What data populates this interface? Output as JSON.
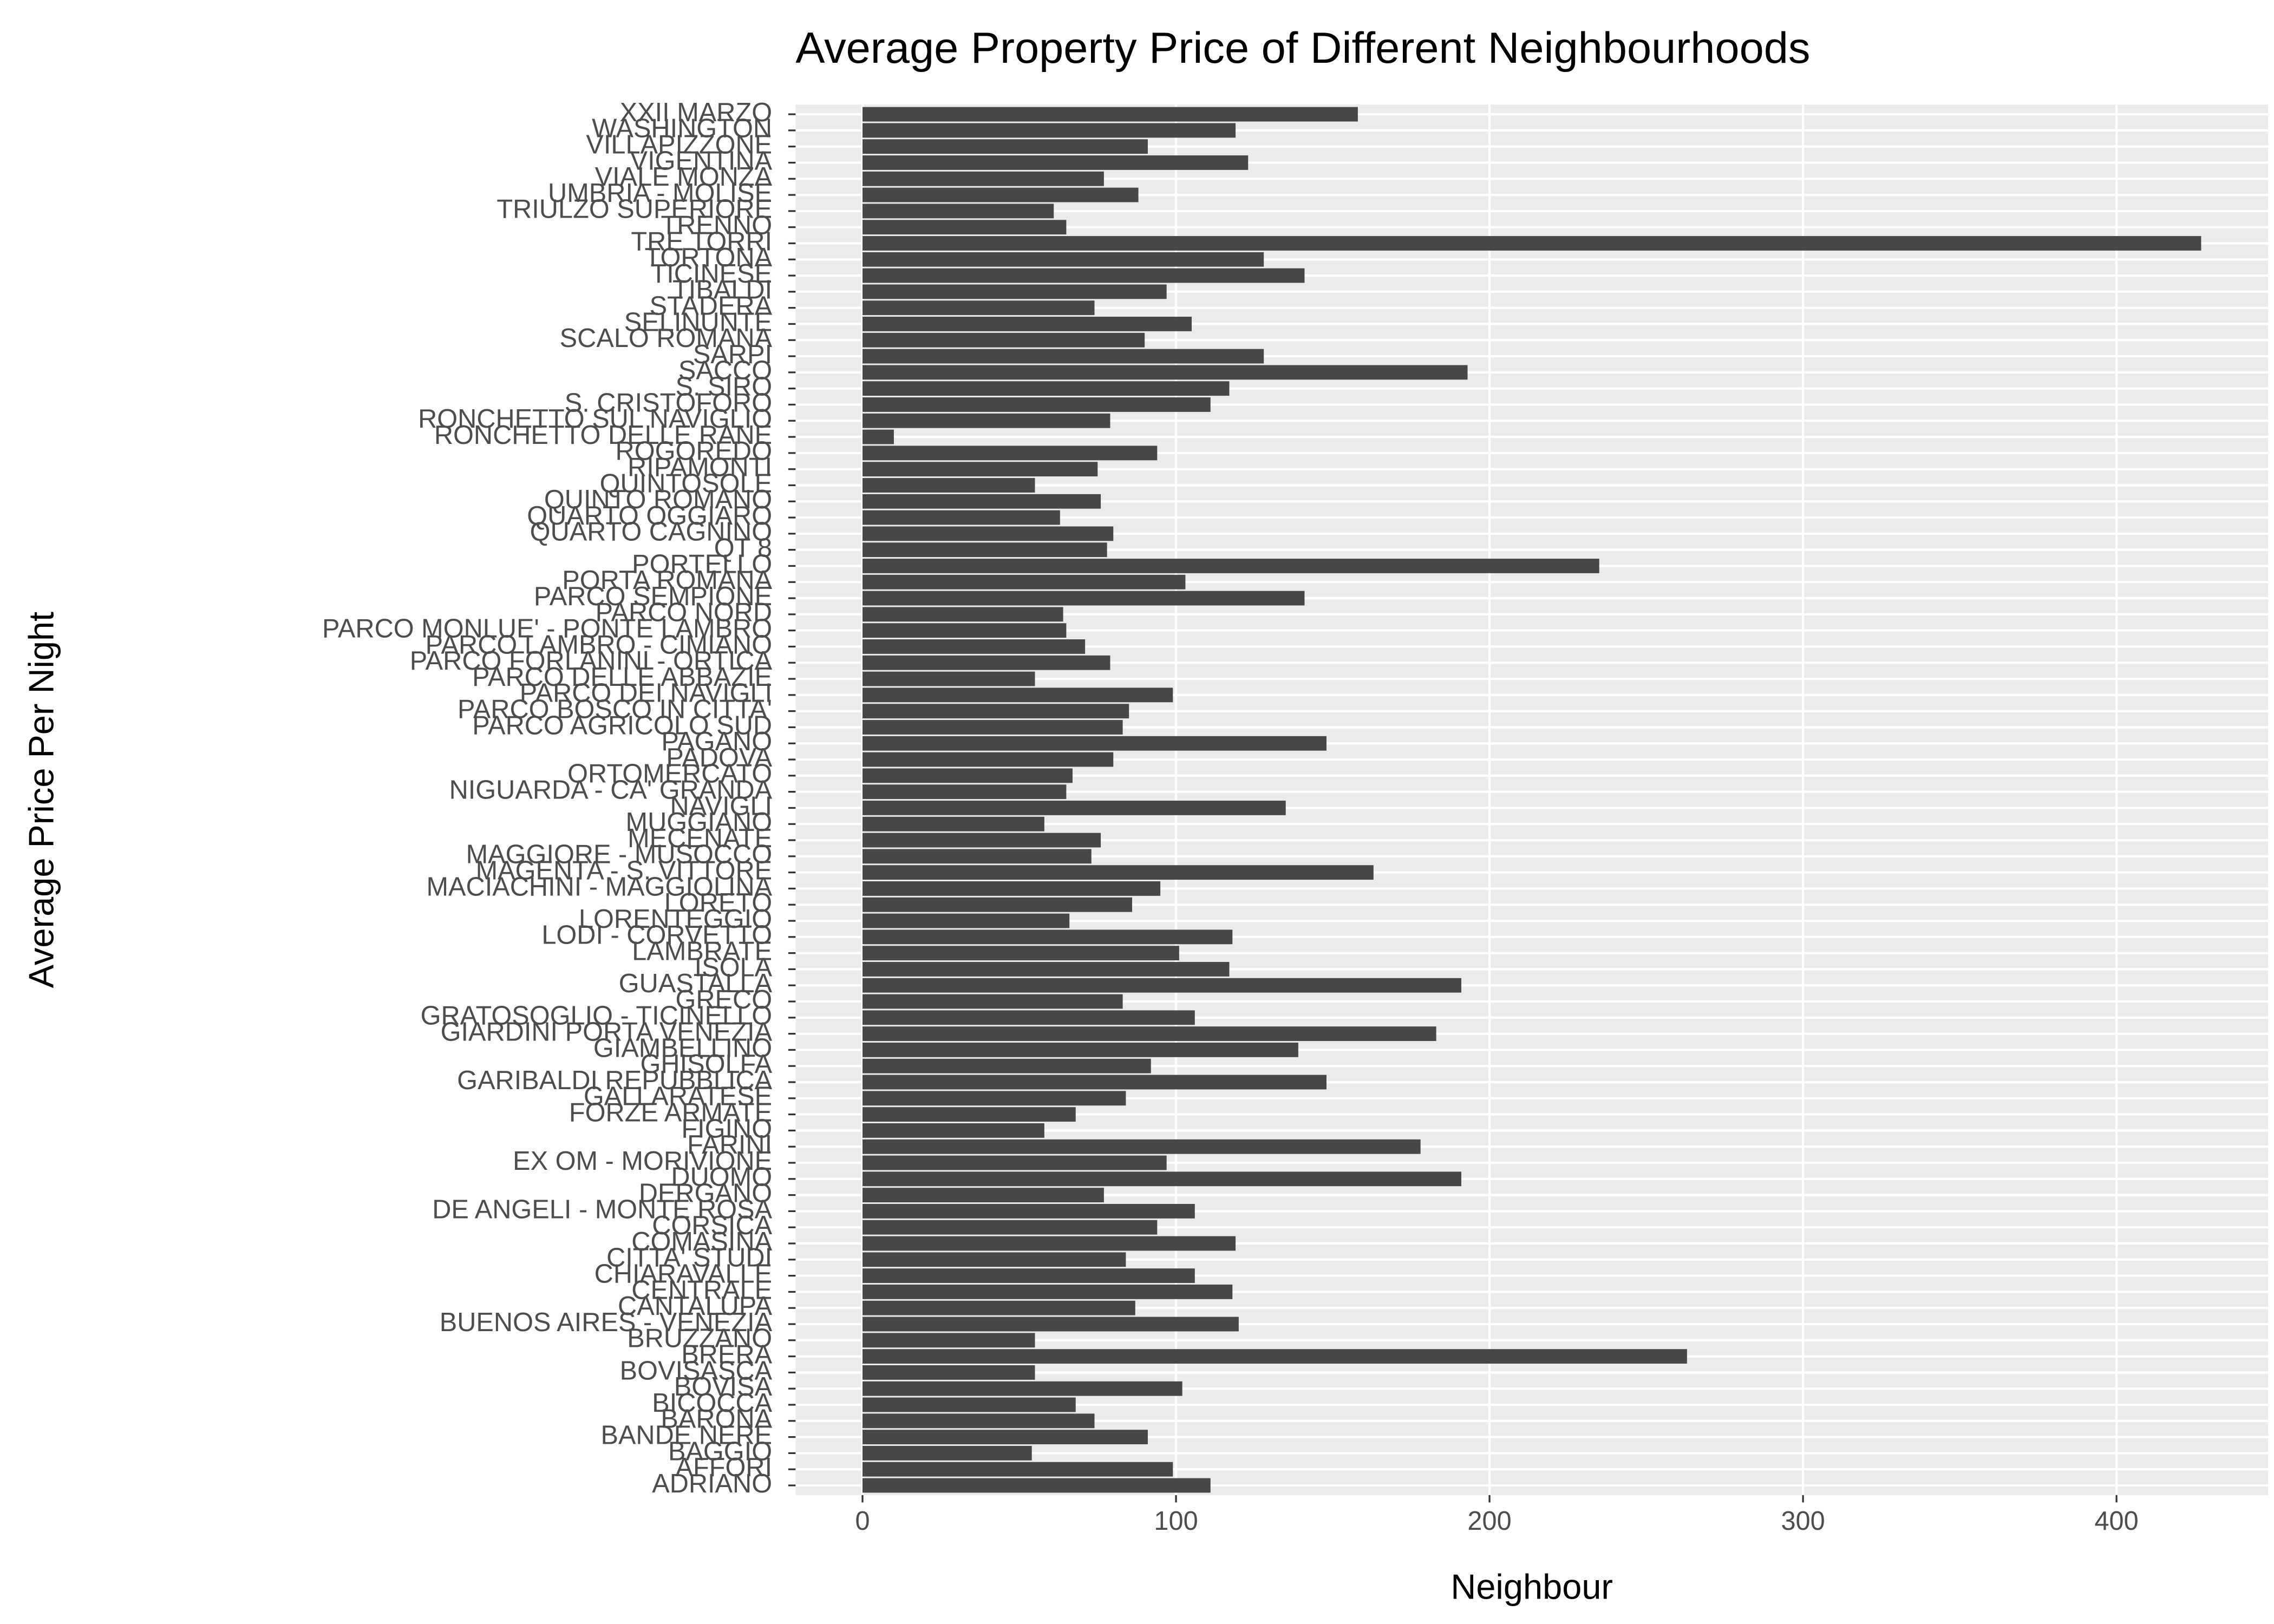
{
  "chart_data": {
    "type": "barh",
    "title": "Average Property Price of Different Neighbourhoods",
    "x_label": "Neighbour",
    "y_label": "Average Price Per Night",
    "categories": [
      "ADRIANO",
      "AFFORI",
      "BAGGIO",
      "BANDE NERE",
      "BARONA",
      "BICOCCA",
      "BOVISA",
      "BOVISASCA",
      "BRERA",
      "BRUZZANO",
      "BUENOS AIRES - VENEZIA",
      "CANTALUPA",
      "CENTRALE",
      "CHIARAVALLE",
      "CITTA' STUDI",
      "COMASINA",
      "CORSICA",
      "DE ANGELI - MONTE ROSA",
      "DERGANO",
      "DUOMO",
      "EX OM - MORIVIONE",
      "FARINI",
      "FIGINO",
      "FORZE ARMATE",
      "GALLARATESE",
      "GARIBALDI REPUBBLICA",
      "GHISOLFA",
      "GIAMBELLINO",
      "GIARDINI PORTA VENEZIA",
      "GRATOSOGLIO - TICINELLO",
      "GRECO",
      "GUASTALLA",
      "ISOLA",
      "LAMBRATE",
      "LODI - CORVETTO",
      "LORENTEGGIO",
      "LORETO",
      "MACIACHINI - MAGGIOLINA",
      "MAGENTA - S. VITTORE",
      "MAGGIORE - MUSOCCO",
      "MECENATE",
      "MUGGIANO",
      "NAVIGLI",
      "NIGUARDA - CA' GRANDA",
      "ORTOMERCATO",
      "PADOVA",
      "PAGANO",
      "PARCO AGRICOLO SUD",
      "PARCO BOSCO IN CITTA'",
      "PARCO DEI NAVIGLI",
      "PARCO DELLE ABBAZIE",
      "PARCO FORLANINI - ORTICA",
      "PARCO LAMBRO - CIMIANO",
      "PARCO MONLUE' - PONTE LAMBRO",
      "PARCO NORD",
      "PARCO SEMPIONE",
      "PORTA ROMANA",
      "PORTELLO",
      "QT 8",
      "QUARTO CAGNINO",
      "QUARTO OGGIARO",
      "QUINTO ROMANO",
      "QUINTOSOLE",
      "RIPAMONTI",
      "ROGOREDO",
      "RONCHETTO DELLE RANE",
      "RONCHETTO SUL NAVIGLIO",
      "S. CRISTOFORO",
      "S. SIRO",
      "SACCO",
      "SARPI",
      "SCALO ROMANA",
      "SELINUNTE",
      "STADERA",
      "TIBALDI",
      "TICINESE",
      "TORTONA",
      "TRE TORRI",
      "TRENNO",
      "TRIULZO SUPERIORE",
      "UMBRIA - MOLISE",
      "VIALE MONZA",
      "VIGENTINA",
      "VILLAPIZZONE",
      "WASHINGTON",
      "XXII MARZO"
    ],
    "values": [
      111,
      99,
      54,
      91,
      74,
      68,
      102,
      55,
      263,
      55,
      120,
      87,
      118,
      106,
      84,
      119,
      94,
      106,
      77,
      191,
      97,
      178,
      58,
      68,
      84,
      148,
      92,
      139,
      183,
      106,
      83,
      191,
      117,
      101,
      118,
      66,
      86,
      95,
      163,
      73,
      76,
      58,
      135,
      65,
      67,
      80,
      148,
      83,
      85,
      99,
      55,
      79,
      71,
      65,
      64,
      141,
      103,
      235,
      78,
      80,
      63,
      76,
      55,
      75,
      94,
      10,
      79,
      111,
      117,
      193,
      128,
      90,
      105,
      74,
      97,
      141,
      128,
      427,
      65,
      61,
      88,
      77,
      123,
      91,
      119,
      158
    ],
    "color": "#474747",
    "xlim": [
      -21.35,
      448.35
    ],
    "xticks": [
      0,
      100,
      200,
      300,
      400
    ],
    "grid": true
  }
}
